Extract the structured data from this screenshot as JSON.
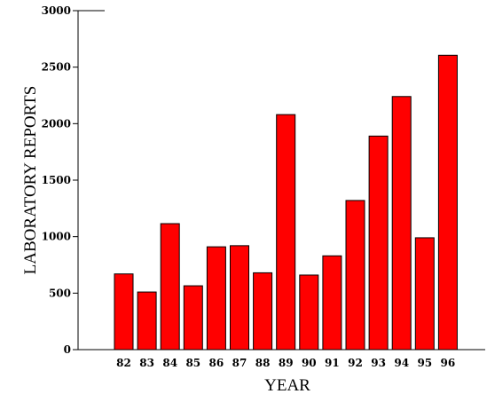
{
  "chart_data": {
    "type": "bar",
    "title": "",
    "xlabel": "YEAR",
    "ylabel": "LABORATORY REPORTS",
    "categories": [
      "82",
      "83",
      "84",
      "85",
      "86",
      "87",
      "88",
      "89",
      "90",
      "91",
      "92",
      "93",
      "94",
      "95",
      "96"
    ],
    "values": [
      670,
      510,
      1115,
      565,
      910,
      920,
      680,
      2080,
      660,
      830,
      1320,
      1890,
      2240,
      990,
      2605
    ],
    "ylim": [
      0,
      3000
    ],
    "yticks": [
      "0",
      "500",
      "1000",
      "1500",
      "2000",
      "2500",
      "3000"
    ],
    "grid": false,
    "bar_color": "#ff0000",
    "edge_color": "#000000"
  }
}
